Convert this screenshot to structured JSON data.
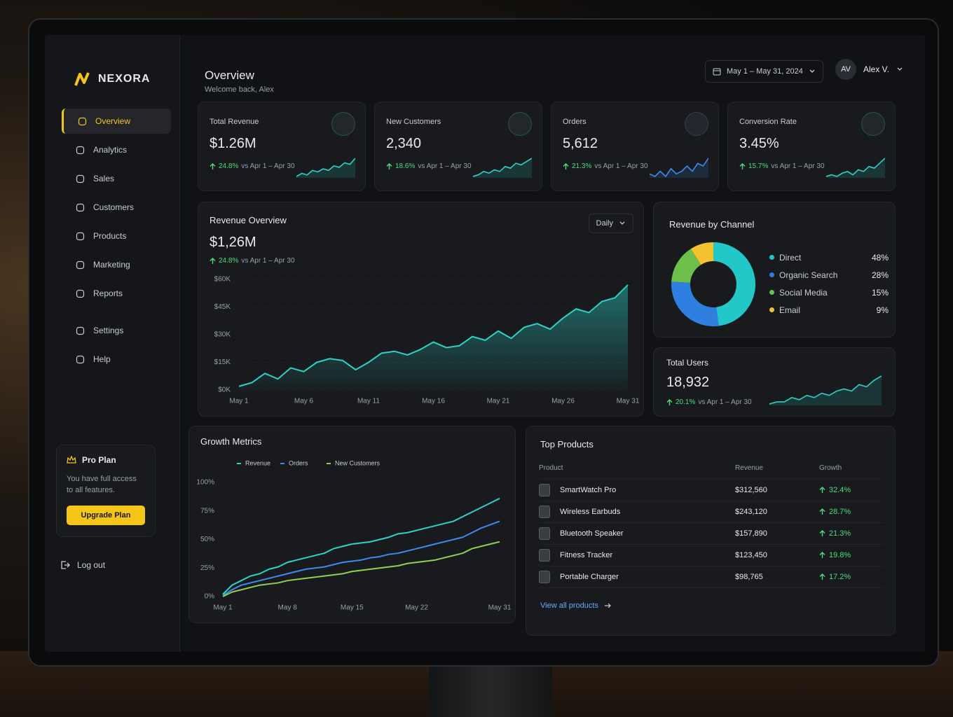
{
  "brand": "NEXORA",
  "nav": [
    "Overview",
    "Analytics",
    "Sales",
    "Customers",
    "Products",
    "Marketing",
    "Reports",
    "Settings",
    "Help"
  ],
  "plan": {
    "title": "Pro Plan",
    "text": "You have full access to all features.",
    "button": "Upgrade Plan"
  },
  "logout": "Log out",
  "header": {
    "title": "Overview",
    "subtitle": "Welcome back, Alex",
    "date_range": "May 1 – May 31, 2024",
    "avatar": "AV",
    "user": "Alex V."
  },
  "kpis": [
    {
      "label": "Total Revenue",
      "value": "$1.26M",
      "change": "24.8%",
      "compare": "vs Apr 1 – Apr 30",
      "color": "#2bd4c8",
      "trend": [
        3,
        5,
        4,
        7,
        6,
        8,
        7,
        10,
        9,
        12,
        11,
        15
      ]
    },
    {
      "label": "New Customers",
      "value": "2,340",
      "change": "18.6%",
      "compare": "vs Apr 1 – Apr 30",
      "color": "#2bd4c8",
      "trend": [
        2,
        3,
        5,
        4,
        6,
        5,
        8,
        7,
        10,
        9,
        11,
        13
      ]
    },
    {
      "label": "Orders",
      "value": "5,612",
      "change": "21.3%",
      "compare": "vs Apr 1 – Apr 30",
      "color": "#3b8cf0",
      "trend": [
        4,
        3,
        5,
        3,
        6,
        4,
        5,
        7,
        5,
        8,
        7,
        10
      ]
    },
    {
      "label": "Conversion Rate",
      "value": "3.45%",
      "change": "15.7%",
      "compare": "vs Apr 1 – Apr 30",
      "color": "#2bd4c8",
      "trend": [
        2,
        3,
        2,
        4,
        5,
        3,
        6,
        5,
        8,
        7,
        10,
        13
      ]
    }
  ],
  "total_users": {
    "label": "Total Users",
    "value": "18,932",
    "change": "20.1%",
    "compare": "vs Apr 1 – Apr 30",
    "color": "#2bd4c8",
    "trend": [
      2,
      3,
      3,
      5,
      4,
      6,
      5,
      7,
      6,
      8,
      9,
      8,
      11,
      10,
      13,
      15
    ]
  },
  "revenue_overview": {
    "value": "$1,26M",
    "change": "24.8%",
    "compare": "vs Apr 1 – Apr 30",
    "period": "Daily"
  },
  "chart_data": [
    {
      "type": "area",
      "title": "Revenue Overview",
      "categories": [
        "May 1",
        null,
        null,
        null,
        null,
        "May 6",
        null,
        null,
        null,
        null,
        "May 11",
        null,
        null,
        null,
        null,
        "May 16",
        null,
        null,
        null,
        null,
        "May 21",
        null,
        null,
        null,
        null,
        "May 26",
        null,
        null,
        null,
        null,
        "May 31"
      ],
      "values": [
        2000,
        4000,
        9000,
        6000,
        12000,
        10000,
        15000,
        17000,
        16000,
        11000,
        15000,
        20000,
        21000,
        19000,
        22000,
        26000,
        23000,
        24000,
        29000,
        27000,
        32000,
        28000,
        34000,
        36000,
        33000,
        39000,
        44000,
        42000,
        48000,
        50000,
        57000
      ],
      "color": "#2bd4c8",
      "ylim": [
        0,
        60000
      ],
      "yticks": [
        {
          "value": 0,
          "label": "$0K"
        },
        {
          "value": 15000,
          "label": "$15K"
        },
        {
          "value": 30000,
          "label": "$30K"
        },
        {
          "value": 45000,
          "label": "$45K"
        },
        {
          "value": 60000,
          "label": "$60K"
        }
      ],
      "grid": true
    },
    {
      "type": "line",
      "title": "Growth Metrics",
      "categories": [
        "May 1",
        null,
        null,
        null,
        null,
        null,
        null,
        "May 8",
        null,
        null,
        null,
        null,
        null,
        null,
        "May 15",
        null,
        null,
        null,
        null,
        null,
        null,
        "May 22",
        null,
        null,
        null,
        null,
        null,
        null,
        null,
        null,
        "May 31"
      ],
      "series": [
        {
          "name": "Revenue",
          "color": "#2bd4c8",
          "values": [
            2,
            10,
            14,
            18,
            20,
            24,
            26,
            30,
            32,
            34,
            36,
            38,
            42,
            44,
            46,
            47,
            48,
            50,
            52,
            55,
            56,
            58,
            60,
            62,
            64,
            66,
            70,
            74,
            78,
            82,
            86
          ]
        },
        {
          "name": "Orders",
          "color": "#3b8cf0",
          "values": [
            1,
            6,
            10,
            12,
            14,
            16,
            18,
            20,
            22,
            24,
            25,
            26,
            28,
            30,
            31,
            32,
            34,
            35,
            37,
            38,
            40,
            42,
            44,
            46,
            48,
            50,
            52,
            56,
            60,
            63,
            66
          ]
        },
        {
          "name": "New Customers",
          "color": "#8fd14f",
          "values": [
            0,
            4,
            6,
            8,
            10,
            11,
            12,
            14,
            15,
            16,
            17,
            18,
            19,
            20,
            22,
            23,
            24,
            25,
            26,
            27,
            29,
            30,
            31,
            32,
            34,
            36,
            38,
            42,
            44,
            46,
            48
          ]
        }
      ],
      "ylim": [
        0,
        100
      ],
      "yticks": [
        {
          "value": 0,
          "label": "0%"
        },
        {
          "value": 25,
          "label": "25%"
        },
        {
          "value": 50,
          "label": "50%"
        },
        {
          "value": 75,
          "label": "75%"
        },
        {
          "value": 100,
          "label": "100%"
        }
      ],
      "grid": false,
      "legend": "top"
    },
    {
      "type": "pie",
      "title": "Revenue by Channel",
      "categories": [
        "Direct",
        "Organic Search",
        "Social Media",
        "Email"
      ],
      "values": [
        48,
        28,
        15,
        9
      ],
      "value_labels": [
        "48%",
        "28%",
        "15%",
        "9%"
      ],
      "colors": [
        "#22c7c7",
        "#2f7fe0",
        "#6cc04a",
        "#f2c230"
      ],
      "legend": "right"
    }
  ],
  "top_products": {
    "title": "Top Products",
    "columns": [
      "Product",
      "Revenue",
      "Growth"
    ],
    "rows": [
      [
        "SmartWatch Pro",
        "$312,560",
        "32.4%"
      ],
      [
        "Wireless Earbuds",
        "$243,120",
        "28.7%"
      ],
      [
        "Bluetooth Speaker",
        "$157,890",
        "21.3%"
      ],
      [
        "Fitness Tracker",
        "$123,450",
        "19.8%"
      ],
      [
        "Portable Charger",
        "$98,765",
        "17.2%"
      ]
    ],
    "link": "View all products"
  }
}
